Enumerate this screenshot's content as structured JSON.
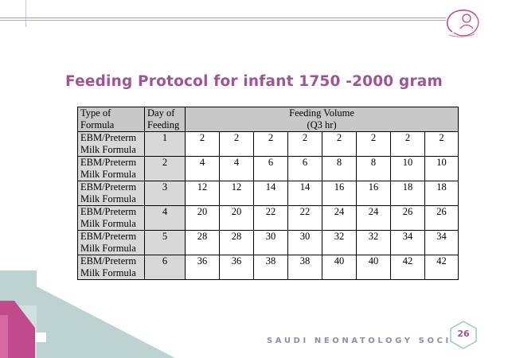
{
  "slide": {
    "title": "Feeding Protocol for infant 1750 -2000 gram",
    "footer_text": "SAUDI NEONATOLOGY SOCIETY",
    "page_number": "26"
  },
  "table": {
    "headers": {
      "type_line1": "Type of",
      "type_line2": "Formula",
      "day_line1": "Day of",
      "day_line2": "Feeding",
      "volume_line1": "Feeding Volume",
      "volume_line2": "(Q3 hr)"
    },
    "rows": [
      {
        "type_line1": "EBM/Preterm",
        "type_line2": "Milk Formula",
        "day": "1",
        "volumes": [
          "2",
          "2",
          "2",
          "2",
          "2",
          "2",
          "2",
          "2"
        ]
      },
      {
        "type_line1": "EBM/Preterm",
        "type_line2": "Milk Formula",
        "day": "2",
        "volumes": [
          "4",
          "4",
          "6",
          "6",
          "8",
          "8",
          "10",
          "10"
        ]
      },
      {
        "type_line1": "EBM/Preterm",
        "type_line2": "Milk Formula",
        "day": "3",
        "volumes": [
          "12",
          "12",
          "14",
          "14",
          "16",
          "16",
          "18",
          "18"
        ]
      },
      {
        "type_line1": "EBM/Preterm",
        "type_line2": "Milk Formula",
        "day": "4",
        "volumes": [
          "20",
          "20",
          "22",
          "22",
          "24",
          "24",
          "26",
          "26"
        ]
      },
      {
        "type_line1": "EBM/Preterm",
        "type_line2": "Milk Formula",
        "day": "5",
        "volumes": [
          "28",
          "28",
          "30",
          "30",
          "32",
          "32",
          "34",
          "34"
        ]
      },
      {
        "type_line1": "EBM/Preterm",
        "type_line2": "Milk Formula",
        "day": "6",
        "volumes": [
          "36",
          "36",
          "38",
          "38",
          "40",
          "40",
          "42",
          "42"
        ]
      }
    ]
  },
  "colors": {
    "title": "#a05495",
    "header_fill": "#c8c8c8",
    "label_fill": "#d8d8d8",
    "deco_teal": "#bcd3d1",
    "deco_pink": "#c04a8a",
    "footer": "#8c8fa8"
  }
}
